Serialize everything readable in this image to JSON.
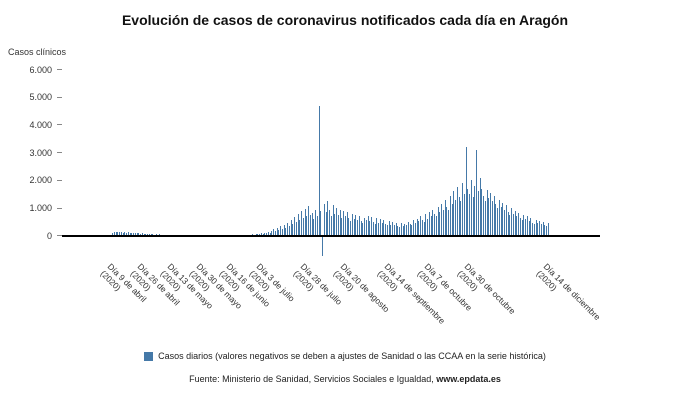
{
  "title": "Evolución de casos de coronavirus notificados cada día en Aragón",
  "y_axis_title": "Casos clínicos",
  "legend": {
    "label": "Casos diarios (valores negativos se deben a ajustes de Sanidad o las CCAA en la serie histórica)",
    "color": "#4579a8"
  },
  "footer": {
    "source_prefix": "Fuente: Ministerio de Sanidad, Servicios Sociales e Igualdad, ",
    "source_site": "www.epdata.es"
  },
  "chart_data": {
    "type": "bar",
    "title": "Evolución de casos de coronavirus notificados cada día en Aragón",
    "xlabel": "",
    "ylabel": "Casos clínicos",
    "ylim": [
      -800,
      6200
    ],
    "grid": false,
    "legend_position": "bottom",
    "bar_color": "#4579a8",
    "yticks": [
      0,
      1000,
      2000,
      3000,
      4000,
      5000,
      6000
    ],
    "ytick_labels": [
      "0",
      "1.000",
      "2.000",
      "3.000",
      "4.000",
      "5.000",
      "6.000"
    ],
    "x_unit": "day",
    "xtick_positions": [
      0,
      17,
      34,
      51,
      68,
      85,
      110,
      133,
      158,
      181,
      204,
      249
    ],
    "xtick_labels": [
      "Día 9 de abril (2020)",
      "Día 26 de abril (2020)",
      "Día 13 de mayo (2020)",
      "Día 30 de mayo (2020)",
      "Día 16 de junio (2020)",
      "Día 3 de julio (2020)",
      "Día 28 de julio (2020)",
      "Día 20 de agosto (2020)",
      "Día 14 de septiembre (2020)",
      "Día 7 de octubre (2020)",
      "Día 30 de octubre (2020)",
      "Día 14 de diciembre (2020)"
    ],
    "values": [
      120,
      150,
      130,
      145,
      125,
      140,
      115,
      135,
      110,
      125,
      100,
      115,
      95,
      105,
      85,
      95,
      75,
      85,
      70,
      80,
      60,
      70,
      55,
      65,
      45,
      55,
      40,
      50,
      35,
      45,
      30,
      40,
      25,
      35,
      22,
      30,
      18,
      25,
      15,
      22,
      12,
      18,
      10,
      15,
      8,
      12,
      6,
      10,
      5,
      8,
      4,
      6,
      5,
      4,
      6,
      3,
      5,
      7,
      4,
      6,
      9,
      5,
      8,
      11,
      6,
      10,
      14,
      8,
      18,
      14,
      22,
      17,
      28,
      20,
      32,
      25,
      38,
      28,
      44,
      33,
      50,
      38,
      58,
      75,
      60,
      95,
      70,
      115,
      85,
      145,
      105,
      190,
      240,
      170,
      290,
      210,
      340,
      250,
      390,
      290,
      480,
      340,
      580,
      430,
      680,
      490,
      780,
      560,
      880,
      640,
      980,
      700,
      1080,
      760,
      820,
      600,
      950,
      700,
      4700,
      900,
      -700,
      1150,
      850,
      1250,
      950,
      700,
      1100,
      800,
      1000,
      750,
      950,
      650,
      900,
      700,
      850,
      640,
      550,
      800,
      600,
      760,
      560,
      700,
      520,
      450,
      640,
      580,
      720,
      540,
      680,
      500,
      420,
      640,
      480,
      600,
      450,
      560,
      420,
      380,
      540,
      400,
      500,
      380,
      460,
      350,
      320,
      480,
      360,
      440,
      380,
      500,
      420,
      380,
      560,
      460,
      620,
      520,
      700,
      580,
      500,
      780,
      620,
      860,
      700,
      950,
      780,
      700,
      1050,
      850,
      1150,
      950,
      1300,
      1050,
      950,
      1450,
      1150,
      1600,
      1300,
      1750,
      1400,
      1250,
      1900,
      1500,
      3200,
      1700,
      1500,
      2000,
      1400,
      1800,
      3100,
      1600,
      2100,
      1700,
      1450,
      1250,
      1650,
      1350,
      1550,
      1250,
      1450,
      1150,
      1000,
      1300,
      1050,
      1200,
      950,
      1100,
      850,
      750,
      1000,
      800,
      900,
      700,
      820,
      640,
      560,
      760,
      600,
      700,
      540,
      640,
      480,
      420,
      580,
      460,
      540,
      420,
      500,
      380,
      340,
      460
    ]
  }
}
